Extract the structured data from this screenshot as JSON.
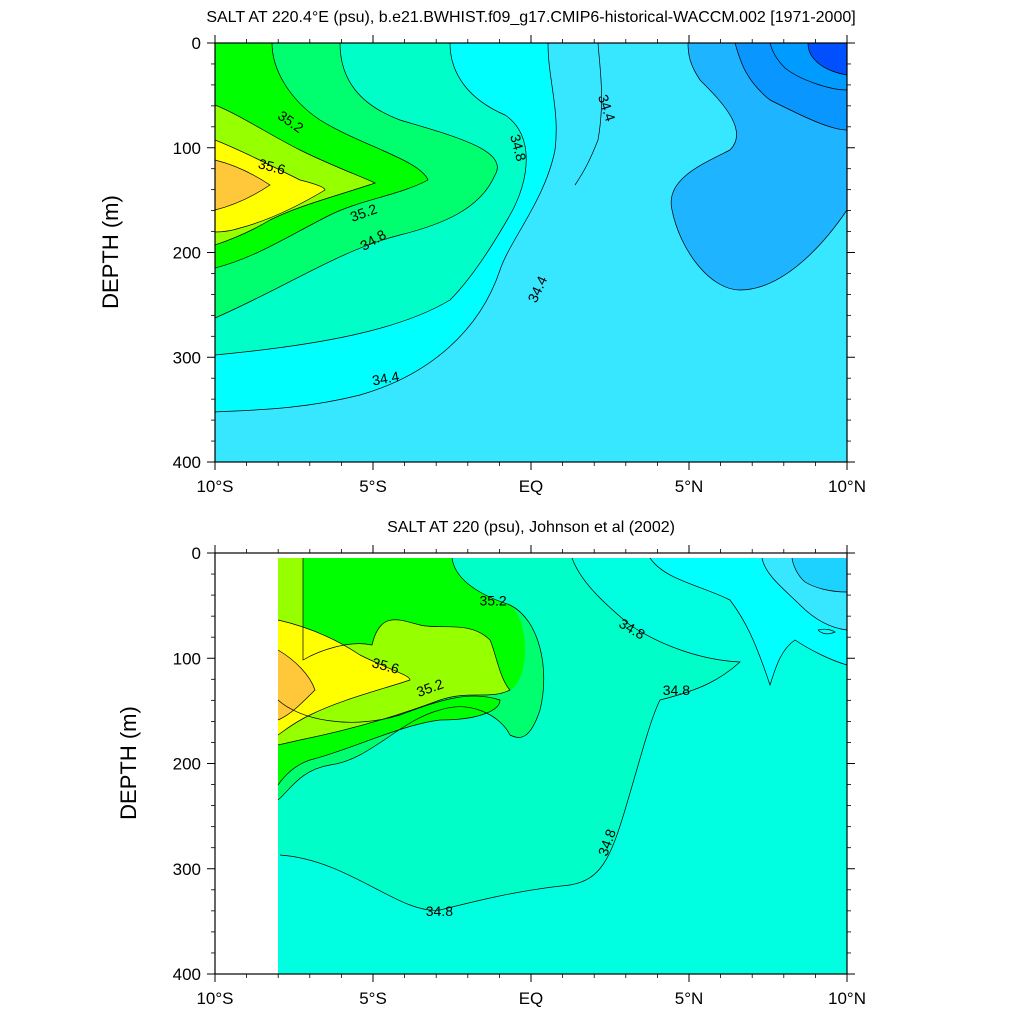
{
  "chart_data": [
    {
      "type": "contour",
      "title": "SALT AT 220.4°E (psu), b.e21.BWHIST.f09_g17.CMIP6-historical-WACCM.002 [1971-2000]",
      "ylabel": "DEPTH (m)",
      "xlim": [
        -10,
        10
      ],
      "ylim": [
        0,
        400
      ],
      "y_reversed": true,
      "x_ticks": [
        -10,
        -5,
        0,
        5,
        10
      ],
      "x_tick_labels": [
        "10°S",
        "5°S",
        "EQ",
        "5°N",
        "10°N"
      ],
      "y_ticks": [
        0,
        100,
        200,
        300,
        400
      ],
      "y_tick_labels": [
        "0",
        "100",
        "200",
        "300",
        "400"
      ],
      "data_xmin": -10,
      "contour_labels": [
        {
          "text": "35.2",
          "x": -7.6,
          "y": 75,
          "angle": 35
        },
        {
          "text": "35.6",
          "x": -8.2,
          "y": 118,
          "angle": 15
        },
        {
          "text": "35.2",
          "x": -5.3,
          "y": 162,
          "angle": -20
        },
        {
          "text": "34.8",
          "x": -5.0,
          "y": 188,
          "angle": -30
        },
        {
          "text": "34.8",
          "x": -0.4,
          "y": 100,
          "angle": 75
        },
        {
          "text": "34.4",
          "x": 2.4,
          "y": 62,
          "angle": 72
        },
        {
          "text": "34.4",
          "x": 0.2,
          "y": 235,
          "angle": -65
        },
        {
          "text": "34.4",
          "x": -4.6,
          "y": 320,
          "angle": -10
        }
      ]
    },
    {
      "type": "contour",
      "title": "SALT AT 220 (psu), Johnson et al (2002)",
      "ylabel": "DEPTH (m)",
      "xlim": [
        -10,
        10
      ],
      "ylim": [
        0,
        400
      ],
      "y_reversed": true,
      "x_ticks": [
        -10,
        -5,
        0,
        5,
        10
      ],
      "x_tick_labels": [
        "10°S",
        "5°S",
        "EQ",
        "5°N",
        "10°N"
      ],
      "y_ticks": [
        0,
        100,
        200,
        300,
        400
      ],
      "y_tick_labels": [
        "0",
        "100",
        "200",
        "300",
        "400"
      ],
      "data_xmin": -8,
      "contour_labels": [
        {
          "text": "35.2",
          "x": -1.2,
          "y": 45,
          "angle": 0
        },
        {
          "text": "34.8",
          "x": 3.2,
          "y": 72,
          "angle": 30
        },
        {
          "text": "35.6",
          "x": -4.6,
          "y": 107,
          "angle": 15
        },
        {
          "text": "35.2",
          "x": -3.2,
          "y": 128,
          "angle": -20
        },
        {
          "text": "34.8",
          "x": 4.6,
          "y": 130,
          "angle": 0
        },
        {
          "text": "34.8",
          "x": 2.4,
          "y": 275,
          "angle": -70
        },
        {
          "text": "34.8",
          "x": -2.9,
          "y": 340,
          "angle": 0
        }
      ]
    }
  ],
  "colors": {
    "yellow_orange": "#ffc83a",
    "yellow": "#ffff00",
    "yellow_green": "#96ff00",
    "green": "#00ff00",
    "spring_green": "#00ff6e",
    "aquamarine": "#00ffc8",
    "turquoise": "#00ffe1",
    "cyan": "#00ffff",
    "light_blue": "#37e6ff",
    "sky_blue": "#1eb4ff",
    "medium_blue": "#0a96ff",
    "azure": "#009bff",
    "deep_blue": "#0050ff"
  }
}
